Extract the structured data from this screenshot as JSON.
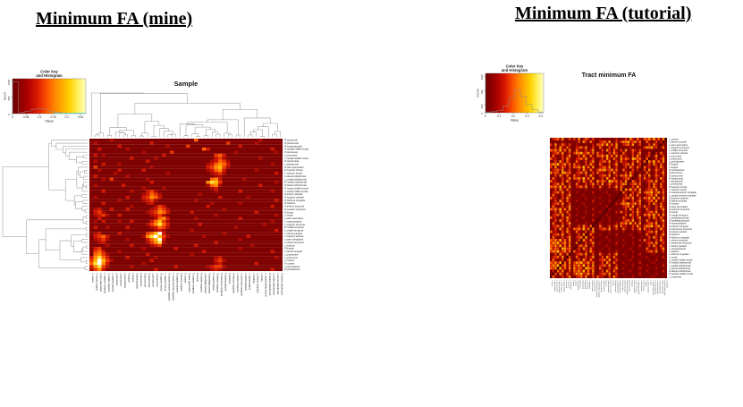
{
  "page": {
    "background": "#ffffff"
  },
  "palette": {
    "bins": [
      "#7E0101",
      "#930301",
      "#AE0A00",
      "#CE1500",
      "#E93700",
      "#FF6200",
      "#FF8C00",
      "#FFB900",
      "#FFE33D",
      "#FFFFFF"
    ],
    "diagonal": "#550000",
    "grid": "#6F0300",
    "dendrogram": "#9a9a9a",
    "key_gradient": [
      "#6E0000",
      "#8E0000",
      "#B30300",
      "#D81800",
      "#F84700",
      "#FF7D00",
      "#FFA800",
      "#FFD200",
      "#FFF05A",
      "#FFFFC8"
    ],
    "trace": "#8a8f8f",
    "cyan_trace": "#3FE0DF"
  },
  "chart_data": [
    {
      "id": "mine",
      "type": "heatmap",
      "panel_title": "Minimum FA (mine)",
      "heatmap_title": "Sample",
      "rows": 44,
      "cols": 48,
      "has_row_dendrogram": true,
      "has_col_dendrogram": true,
      "value_range": [
        0,
        0.25
      ],
      "color_key": {
        "title": [
          "Color Key",
          "and Histogram"
        ],
        "xlabel": "Value",
        "ylabel": "Count",
        "x_ticks": [
          0,
          0.05,
          0.1,
          0.15,
          0.2,
          0.25
        ],
        "x_max": 0.27,
        "y_ticks": [
          0,
          500,
          1000
        ],
        "y_max": 1080,
        "hist_bins": [
          0.97,
          0.04,
          0.07,
          0.13,
          0.15,
          0.12,
          0.07,
          0.04,
          0.02,
          0.015,
          0.01,
          0.008
        ],
        "cyan_tail": true
      },
      "row_labels": [
        "R.precentral",
        "R.postcentral",
        "R.supramarginal",
        "R.caudal middle frontal",
        "R.precuneus",
        "L.precentral",
        "L.caudal middle frontal",
        "R.paracentral",
        "L.paracentral",
        "R.pars opercularis",
        "R.superior frontal",
        "L.superior frontal",
        "L.lateral orbitofrontal",
        "L.medial orbitofrontal",
        "R.medial orbitofrontal",
        "R.lateral orbitofrontal",
        "R.rostral middle frontal",
        "L.rostral middle frontal",
        "R.inferior parietal",
        "R.superior parietal",
        "R.isthmus cingulate",
        "R.fusiform",
        "R.inferior temporal",
        "R.superior temporal",
        "R.insula",
        "L.insula",
        "L.pars opercularis",
        "L.supramarginal",
        "L.superior temporal",
        "R.middle temporal",
        "L.middle temporal",
        "L.inferior parietal",
        "L.superior parietal",
        "L.pars triangularis",
        "L.inferior temporal",
        "L.fusiform",
        "R.lingual",
        "L.lateral occipital",
        "L.postcentral",
        "L.precuneus",
        "L.cuneus",
        "R.cuneus",
        "L.pericalcarine",
        "R.pericalcarine"
      ],
      "col_labels": [
        "L.cuneus",
        "L.lateral occipital",
        "L.pars opercularis",
        "L.superior temporal",
        "L.middle temporal",
        "L.superior parietal",
        "L.precentral",
        "L.precuneus",
        "L.pericalcarine",
        "R.lingual",
        "L.lingual",
        "R.pericalcarine",
        "R.precuneus",
        "R.postcentral",
        "R.paracentral",
        "L.paracentral",
        "L.postcentral",
        "R.superior frontal",
        "L.superior frontal",
        "R.caudal anterior cingulate",
        "L.caudal anterior cingulate",
        "R.superior parietal",
        "R.lateral occipital",
        "R.cuneus",
        "R.pars opercularis",
        "R.superior temporal",
        "R.insula",
        "R.middle temporal",
        "L.parahippocampal",
        "R.parahippocampal",
        "R.supramarginal",
        "R.inferior temporal",
        "R.transverse temporal",
        "R.inferior parietal",
        "R.fusiform",
        "R.isthmus cingulate",
        "L.inferior temporal",
        "L.transverse temporal",
        "L.inferior parietal",
        "L.supramarginal",
        "L.fusiform",
        "L.isthmus cingulate",
        "L.insula",
        "L.caudal middle frontal",
        "R.medial orbitofrontal",
        "L.medial orbitofrontal",
        "L.lateral orbitofrontal",
        "R.lateral orbitofrontal"
      ],
      "matrix": [
        "000002000000000000000000005000000000000000200000",
        "020000000000000300000000000000000040000002000000",
        "000000030000000000020000400000000000030000000000",
        "003000000200000000000000000053000000000000000300",
        "000000000000020000004000000000000000200000000020",
        "030200000000000000300000000000045300000000000000",
        "000000000030000020000000000000034200000000200000",
        "020000000000003000000000000000235420000000000000",
        "000300020000000000000000000002356530000000000200",
        "040000000000000200000000000003467420000000000000",
        "002000030000030000000000000002356300000002000000",
        "000000200000000000020000000000234200000000000030",
        "030000000200000000000000000000022000000000000000",
        "000204000000002000000000000000563000002000000000",
        "000000000000000300000000000006874000000000000020",
        "020000003000000000000000000002562000000000300000",
        "000000000000020000200000000000230000000000000000",
        "000300000020003420000000000000020000030000000200",
        "000000000000023542000000000200000000000000000000",
        "020000000300034653000000000000003000000200000000",
        "000000020000023420000000002000000000000000000030",
        "000300000000002300000000000000200000020000000000",
        "000000000020000024300000000003000000000000000300",
        "023003000300000235420000000000000200000000000000",
        "034200000000002346530000030000000000000003000000",
        "023420030000000234200000000000020000000000000020",
        "003000000000000025630000002000000000030000000000",
        "020300020030000357420000000000000000000000000200",
        "000000000000002468530000000300000000000000020000",
        "030020000300000235420000000000000000200000000000",
        "000000000000000023200000020000000000000000000030",
        "023000030000004579300000000000000200000000000000",
        "034530000000026897420000000020000000000300000000",
        "023420000200003579300000000000000000020000000000",
        "002300000000002468200000000000030000000000000000",
        "000020000030000234000000003000000000000020000000",
        "034000000000020000000300000000000000020000000000",
        "045300020000000000000000000030000000000000000300",
        "056420000000003000000000020000000000000000000000",
        "368530000300000020000000000000023000000000000020",
        "479742000000000300000000000000034200000000000000",
        "589630000000020000000000000000023000000003000000",
        "368420000020000000000300000002344200000000000000",
        "246300000000000030000000000000232000000000000300"
      ]
    },
    {
      "id": "tutorial",
      "type": "heatmap",
      "panel_title": "Minimum FA (tutorial)",
      "heatmap_title": "Tract minimum FA",
      "rows": 50,
      "cols": 50,
      "has_row_dendrogram": false,
      "has_col_dendrogram": false,
      "dark_anti_diagonal": true,
      "grid_lines": true,
      "value_range": [
        0,
        0.4
      ],
      "color_key": {
        "title": [
          "Color Key",
          "and Histogram"
        ],
        "xlabel": "Value",
        "ylabel": "Count",
        "x_ticks": [
          0,
          0.1,
          0.2,
          0.3,
          0.4
        ],
        "x_max": 0.42,
        "y_ticks": [
          0,
          200,
          600,
          1000
        ],
        "y_max": 1080,
        "hist_bins": [
          0.02,
          0.03,
          0.06,
          0.18,
          0.38,
          0.6,
          0.44,
          0.22,
          0.08,
          0.02
        ],
        "cyan_tail": false
      },
      "row_labels": [
        "L.cuneus",
        "L.lateral occipital",
        "L.pars opercularis",
        "L.superior temporal",
        "L.middle temporal",
        "L.superior parietal",
        "L.precentral",
        "L.precuneus",
        "L.pericalcarine",
        "R.lingual",
        "L.lingual",
        "R.pericalcarine",
        "R.precuneus",
        "R.postcentral",
        "R.paracentral",
        "L.paracentral",
        "L.postcentral",
        "R.superior frontal",
        "L.superior frontal",
        "R.caudal anterior cingulate",
        "L.caudal anterior cingulate",
        "R.superior parietal",
        "R.lateral occipital",
        "R.cuneus",
        "R.pars opercularis",
        "R.superior temporal",
        "R.insula",
        "R.middle temporal",
        "L.parahippocampal",
        "R.parahippocampal",
        "R.supramarginal",
        "R.inferior temporal",
        "R.transverse temporal",
        "R.inferior parietal",
        "R.fusiform",
        "R.isthmus cingulate",
        "L.inferior temporal",
        "L.transverse temporal",
        "L.inferior parietal",
        "L.supramarginal",
        "L.fusiform",
        "L.isthmus cingulate",
        "L.insula",
        "L.caudal middle frontal",
        "R.medial orbitofrontal",
        "L.medial orbitofrontal",
        "L.lateral orbitofrontal",
        "R.lateral orbitofrontal",
        "R.caudal middle frontal",
        "L.entorhinal"
      ],
      "matrix": [
        "03452601404060253041020001003001406305205463725160",
        "00100200010140630520034526014046573462500520140360",
        "40602530410200010030546372516003452601400140630520",
        "01406305200345260140052014036000012000104657346250",
        "54637251600520140360014063052040602530410010020001",
        "03452601404657346250523004163005201403600140630520",
        "05201403600140630520546372516052300416300345260140",
        "52300416300345260140014063052063540764510520140360",
        "01406305200520140360034526014052300416305463725160",
        "46573462505230041630052014036003452601400140630520",
        "40602530415463725160034526014001406305205230041630",
        "03452601400140630520465734625005201403604060253041",
        "63540764510345260140523004163001406305200520140360",
        "01406305205230041630034526014054637251604060253041",
        "05201403605463725160014063052003452601405230041630",
        "52300416300140630520635407645140602530410345260140",
        "03452601400520140360406025304146573462500140630520",
        "54637251600345260140052014036052300416300140630520",
        "01406305200010020001020001003054637251600345260140",
        "03452601400200010030000120001005201403604657346250",
        "05201403600001200010001002000101406305200345260140",
        "52300416300010020001020001003003452601405463725160",
        "01406305200200010030001002000105201403600345260140",
        "03452601400001200010020001003046573462500140630520",
        "05201403600010020001000120001003452601405230041630",
        "54637251600200010030001002000101406305200520140360",
        "01406305200010020001020001003052300416300345260140",
        "03452601400200010030000120001001406305205463725160",
        "52300416300001200010001002000105201403600140630520",
        "01406305200200010030001002000103452601400520140360",
        "05201403600010020001020001003054637251600345260140",
        "03452601400140630520052014036052300416304657346250",
        "01406305205463725160034526014005201403605230041630",
        "52300416300520140360001002000102000100300345260140",
        "03452601400140630520020001003000012000100520140360",
        "05201403600345260140000120001000100200010140630520",
        "54637251600140630520001002000102000100305230041630",
        "46573462500520140360020001003000100200010345260140",
        "54637251600345260140000120001002000100300140630520",
        "63540764510140630520001002000100012000100520140360",
        "46573462505230041630020001003000100200010345260140",
        "01406305200345260140052014036002000100300001200010",
        "03452601400520140360014063052000100200010200010030",
        "05201403600140630520034526014000012000100010020001",
        "54637251604657346250014063052002000100300001200010",
        "46573462505463725160034526014000100200010200010030",
        "54637251606354076451052014036002000100300010020001",
        "03452601405463725160014063052000012000100200010030",
        "01406305204657346250034526014002000100300010020001",
        "05201403600345260140523004163000100200010001200010"
      ]
    }
  ]
}
